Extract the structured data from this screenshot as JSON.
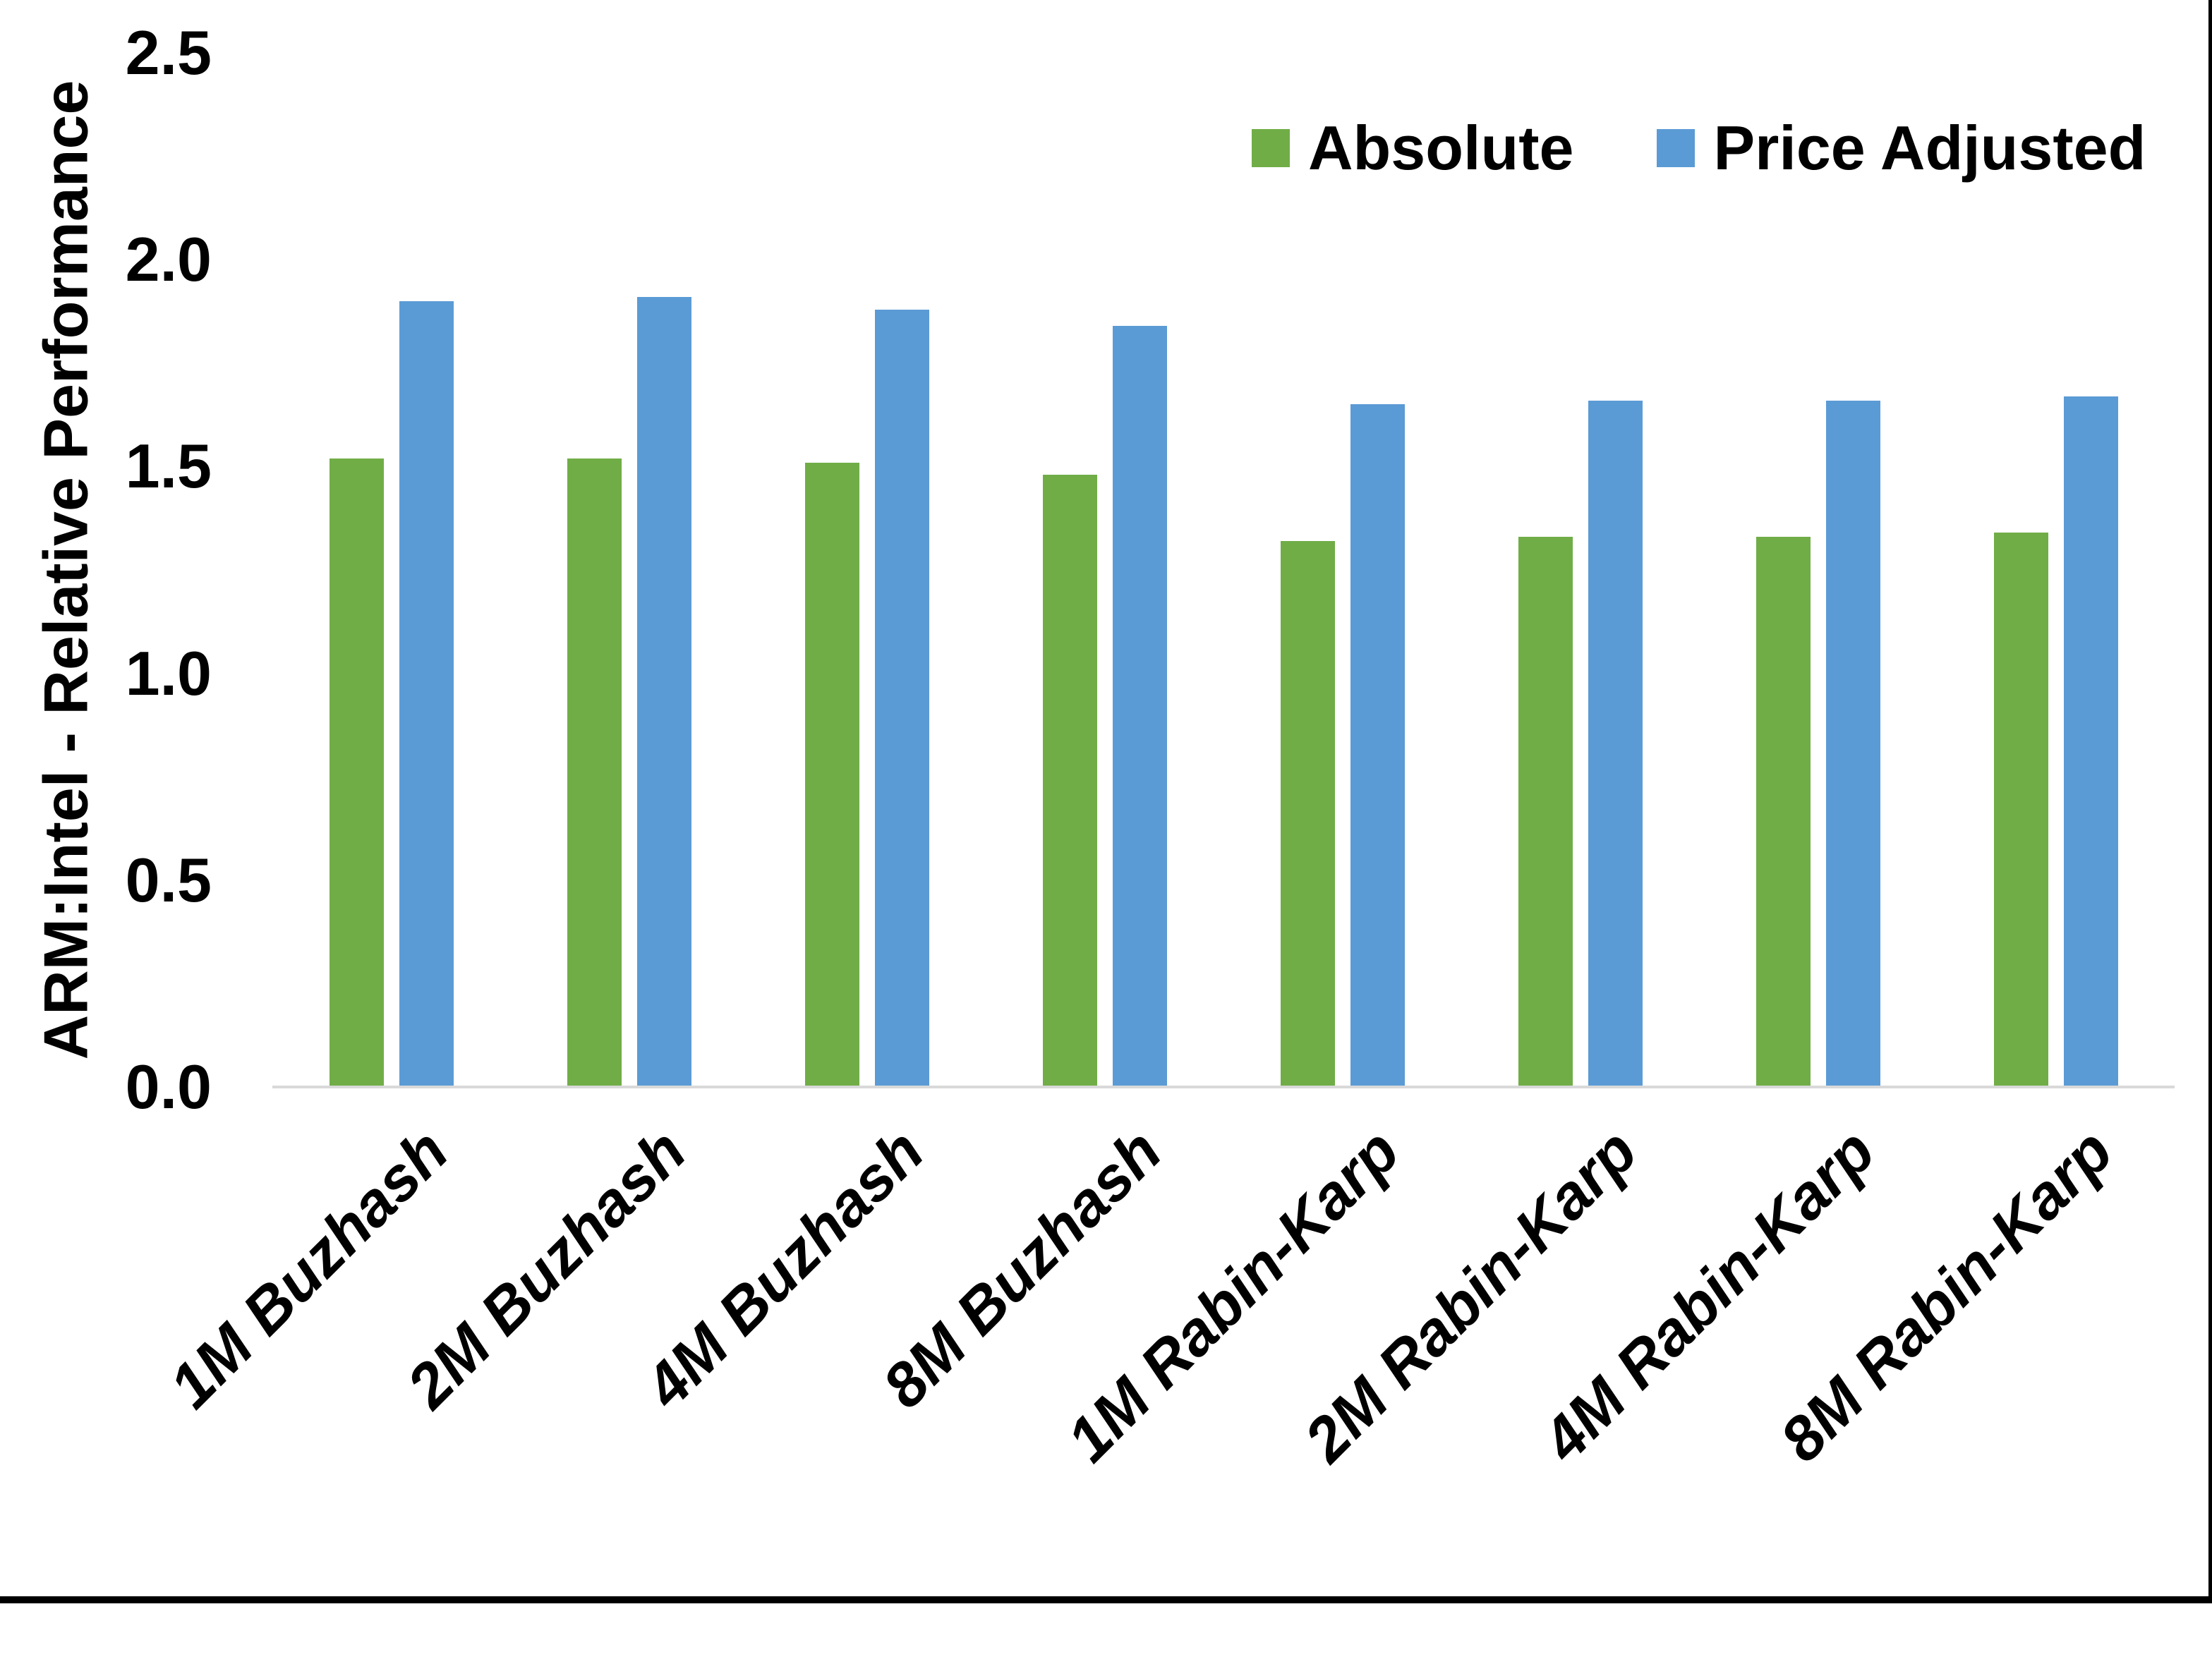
{
  "chart_data": {
    "type": "bar",
    "title": "",
    "ylabel": "ARM:Intel - Relative Performance",
    "xlabel": "",
    "ylim": [
      0,
      2.5
    ],
    "yticks": [
      0.0,
      0.5,
      1.0,
      1.5,
      2.0,
      2.5
    ],
    "ytick_labels": [
      "0.0",
      "0.5",
      "1.0",
      "1.5",
      "2.0",
      "2.5"
    ],
    "grid": false,
    "legend_position": "top-right",
    "categories": [
      "1M Buzhash",
      "2M Buzhash",
      "4M Buzhash",
      "8M Buzhash",
      "1M Rabin-Karp",
      "2M Rabin-Karp",
      "4M Rabin-Karp",
      "8M Rabin-Karp"
    ],
    "series": [
      {
        "name": "Absolute",
        "color": "#70AD47",
        "values": [
          1.52,
          1.52,
          1.51,
          1.48,
          1.32,
          1.33,
          1.33,
          1.34
        ]
      },
      {
        "name": "Price Adjusted",
        "color": "#5B9BD5",
        "values": [
          1.9,
          1.91,
          1.88,
          1.84,
          1.65,
          1.66,
          1.66,
          1.67
        ]
      }
    ],
    "axis_line_color": "#D9D9D9",
    "text_color": "#000000"
  }
}
